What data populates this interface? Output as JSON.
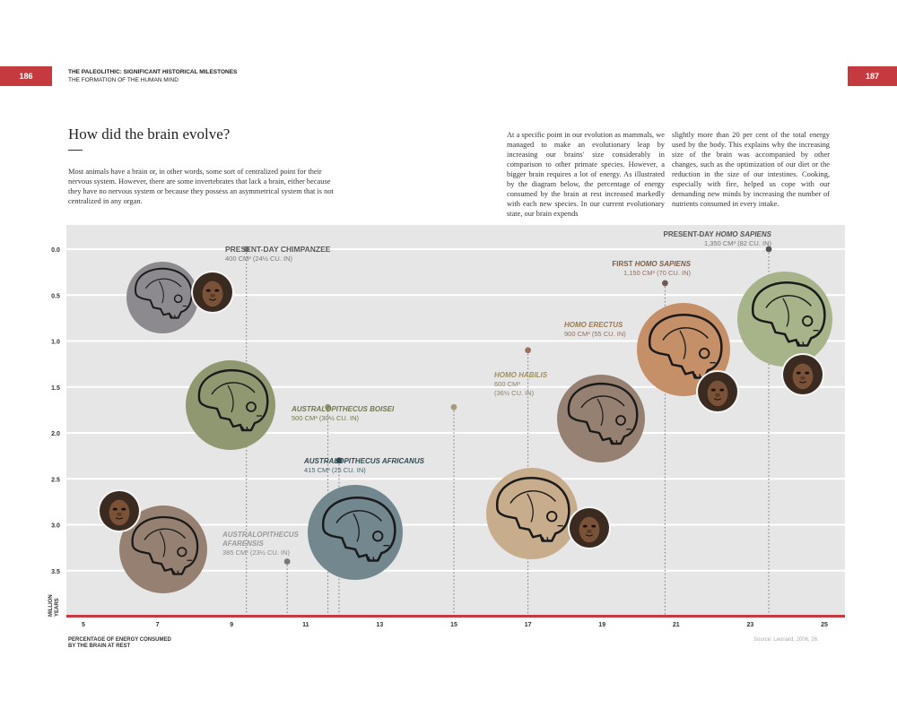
{
  "pages": {
    "left": "186",
    "right": "187"
  },
  "running_head": {
    "title": "THE PALEOLITHIC: SIGNIFICANT HISTORICAL MILESTONES",
    "subtitle": "THE FORMATION OF THE HUMAN MIND"
  },
  "heading": "How did the brain evolve?",
  "intro_text": "Most animals have a brain or, in other words, some sort of centralized point for their nervous system. However, there are some invertebrates that lack a brain, either because they have no nervous system or because they possess an asymmetrical system that is not centralized in any organ.",
  "body_text_col1": "At a specific point in our evolution as mammals, we managed to make an evolutionary leap by increasing our brains' size considerably in comparison to other primate species. However, a bigger brain requires a lot of energy. As illustrated by the diagram below, the percentage of energy consumed by the brain at rest increased markedly with each new species. In our current evolutionary state, our brain expends",
  "body_text_col2": "slightly more than 20 per cent of the total energy used by the body. This explains why the increasing size of the brain was accompanied by other changes, such as the optimization of our diet or the reduction in the size of our intestines. Cooking, especially with fire, helped us cope with our demanding new minds by increasing the number of nutrients consumed in every intake.",
  "source": "Source: Leonard, 2006, 26.",
  "colors": {
    "accent": "#c43a3f",
    "panel": "#e6e6e6",
    "grid": "#ffffff",
    "circle_grey": "#8c8a8e",
    "circle_green": "#8f9870",
    "circle_brown": "#968071",
    "circle_blue": "#72878e",
    "circle_tan": "#c8ad8d",
    "circle_orange": "#c58f68",
    "circle_lightgreen": "#a7b48a"
  },
  "chart_data": {
    "type": "scatter",
    "xlabel": "PERCENTAGE OF ENERGY CONSUMED BY THE BRAIN AT REST",
    "ylabel": "MILLION YEARS",
    "x_ticks": [
      5,
      7,
      9,
      11,
      13,
      15,
      17,
      19,
      21,
      23,
      25
    ],
    "y_ticks": [
      "0.0",
      "0.5",
      "1.0",
      "1.5",
      "2.0",
      "2.5",
      "3.0",
      "3.5"
    ],
    "xlim": [
      5,
      25
    ],
    "ylim": [
      0,
      4
    ],
    "points": [
      {
        "name": "PRESENT-DAY CHIMPANZEE",
        "detail": "400 CM³ (24½ CU. IN)",
        "x": 9.4,
        "y": 0.0,
        "dot": "#8c8a8e",
        "label_color": "#555555",
        "circle_color": "#8c8a8e",
        "icon": "chimpanzee-skull-icon",
        "photo": "chimpanzee-photo"
      },
      {
        "name": "AUSTRALOPITHECUS AFARENSIS",
        "detail": "385 CM³ (23½ CU. IN)",
        "x": 10.5,
        "y": 3.4,
        "dot": "#777777",
        "label_color": "#999999",
        "circle_color": "#968071",
        "icon": "afarensis-skull-icon",
        "photo": "afarensis-face-photo"
      },
      {
        "name": "AUSTRALOPITHECUS BOISEI",
        "detail": "500 CM³ (30½ CU. IN)",
        "x": 11.6,
        "y": 1.72,
        "dot": "#8f9870",
        "label_color": "#6f784d",
        "circle_color": "#8f9870",
        "icon": "boisei-skull-icon"
      },
      {
        "name": "AUSTRALOPITHECUS AFRICANUS",
        "detail": "415 CM³ (25 CU. IN)",
        "x": 11.9,
        "y": 2.3,
        "dot": "#2f4a55",
        "label_color": "#2f4a55",
        "circle_color": "#72878e",
        "icon": "africanus-skull-icon"
      },
      {
        "name": "HOMO HABILIS",
        "detail": "600 CM³ (36½ CU. IN)",
        "x": 15.0,
        "y": 1.72,
        "dot": "#a89a78",
        "label_color": "#a09060",
        "circle_color": "#c8ad8d",
        "icon": "habilis-skull-icon",
        "photo": "habilis-face-photo"
      },
      {
        "name": "HOMO ERECTUS",
        "detail": "900 CM³ (55 CU. IN)",
        "x": 17.0,
        "y": 1.1,
        "dot": "#9a7060",
        "label_color": "#9a7a50",
        "circle_color": "#968071",
        "icon": "erectus-skull-icon"
      },
      {
        "name": "FIRST HOMO SAPIENS",
        "detail": "1,150 CM³ (70 CU. IN)",
        "x": 20.7,
        "y": 0.37,
        "dot": "#6e5a50",
        "label_color": "#7a5e48",
        "circle_color": "#c58f68",
        "icon": "early-sapiens-skull-icon",
        "photo": "early-sapiens-face-photo"
      },
      {
        "name": "PRESENT-DAY HOMO SAPIENS",
        "detail": "1,350 CM³ (82 CU. IN)",
        "x": 23.5,
        "y": 0.0,
        "dot": "#555555",
        "label_color": "#555555",
        "circle_color": "#a7b48a",
        "icon": "modern-sapiens-skull-icon",
        "photo": "modern-sapiens-face-photo"
      }
    ]
  },
  "labels": {
    "chimp_title": "PRESENT-DAY CHIMPANZEE",
    "chimp_detail": "400 CM³ (24½ CU. IN)",
    "afarensis_line1": "AUSTRALOPITHECUS",
    "afarensis_line2": "AFARENSIS",
    "afarensis_detail": "385 CM³ (23½ CU. IN)",
    "boisei_title": "AUSTRALOPITHECUS BOISEI",
    "boisei_detail": "500 CM³ (30½ CU. IN)",
    "africanus_title": "AUSTRALOPITHECUS AFRICANUS",
    "africanus_detail": "415 CM³ (25 CU. IN)",
    "habilis_title": "HOMO HABILIS",
    "habilis_detail1": "600 CM³",
    "habilis_detail2": "(36½ CU. IN)",
    "erectus_title": "HOMO ERECTUS",
    "erectus_detail": "900 CM³ (55 CU. IN)",
    "first_sapiens_prefix": "FIRST",
    "first_sapiens_name": "HOMO SAPIENS",
    "first_sapiens_detail": "1,150 CM³ (70 CU. IN)",
    "modern_sapiens_prefix": "PRESENT-DAY",
    "modern_sapiens_name": "HOMO SAPIENS",
    "modern_sapiens_detail": "1,350 CM³ (82 CU. IN)",
    "million_line1": "MILLION",
    "million_line2": "YEARS",
    "xaxis_line1": "PERCENTAGE OF ENERGY CONSUMED",
    "xaxis_line2": "BY THE BRAIN AT REST"
  }
}
